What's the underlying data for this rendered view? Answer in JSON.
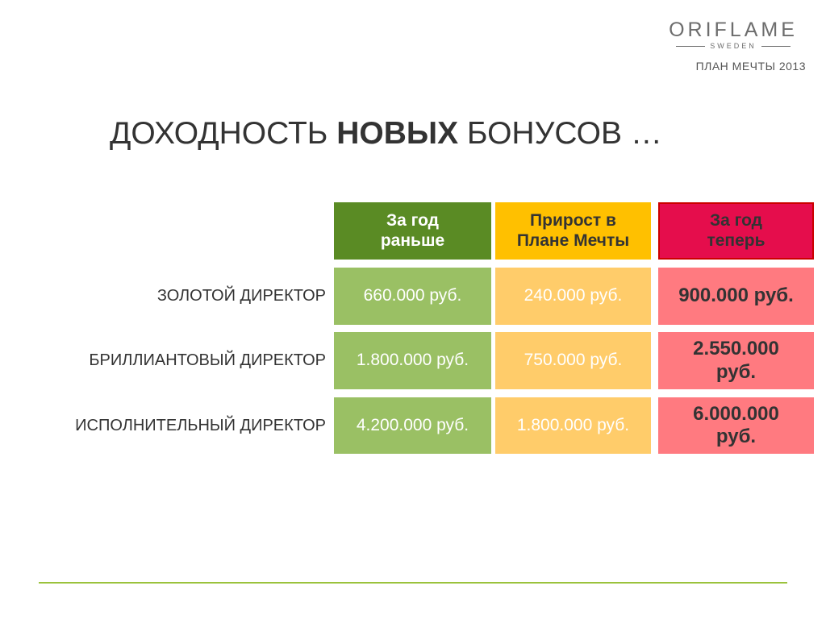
{
  "logo": {
    "brand": "ORIFLAME",
    "sub": "SWEDEN"
  },
  "plan_label": "ПЛАН  МЕЧТЫ  2013",
  "title": {
    "part1": "ДОХОДНОСТЬ ",
    "bold": "НОВЫХ",
    "part2": " БОНУСОВ …"
  },
  "table": {
    "headers": [
      "За год раньше",
      "Прирост в Плане Мечты",
      "За год теперь"
    ],
    "rows": [
      {
        "label": "ЗОЛОТОЙ ДИРЕКТОР",
        "before": "660.000 руб.",
        "growth": "240.000 руб.",
        "now": "900.000 руб."
      },
      {
        "label": "БРИЛЛИАНТОВЫЙ ДИРЕКТОР",
        "before": "1.800.000 руб.",
        "growth": "750.000 руб.",
        "now": "2.550.000 руб."
      },
      {
        "label": "ИСПОЛНИТЕЛЬНЫЙ ДИРЕКТОР",
        "before": "4.200.000 руб.",
        "growth": "1.800.000 руб.",
        "now": "6.000.000 руб."
      }
    ]
  },
  "colors": {
    "header_before": "#5a8b24",
    "header_growth": "#ffc000",
    "header_now": "#e50d4c",
    "cell_before": "#9ac064",
    "cell_growth": "#ffcc6a",
    "cell_now": "#ff7a80",
    "rule": "#9bc23c"
  }
}
